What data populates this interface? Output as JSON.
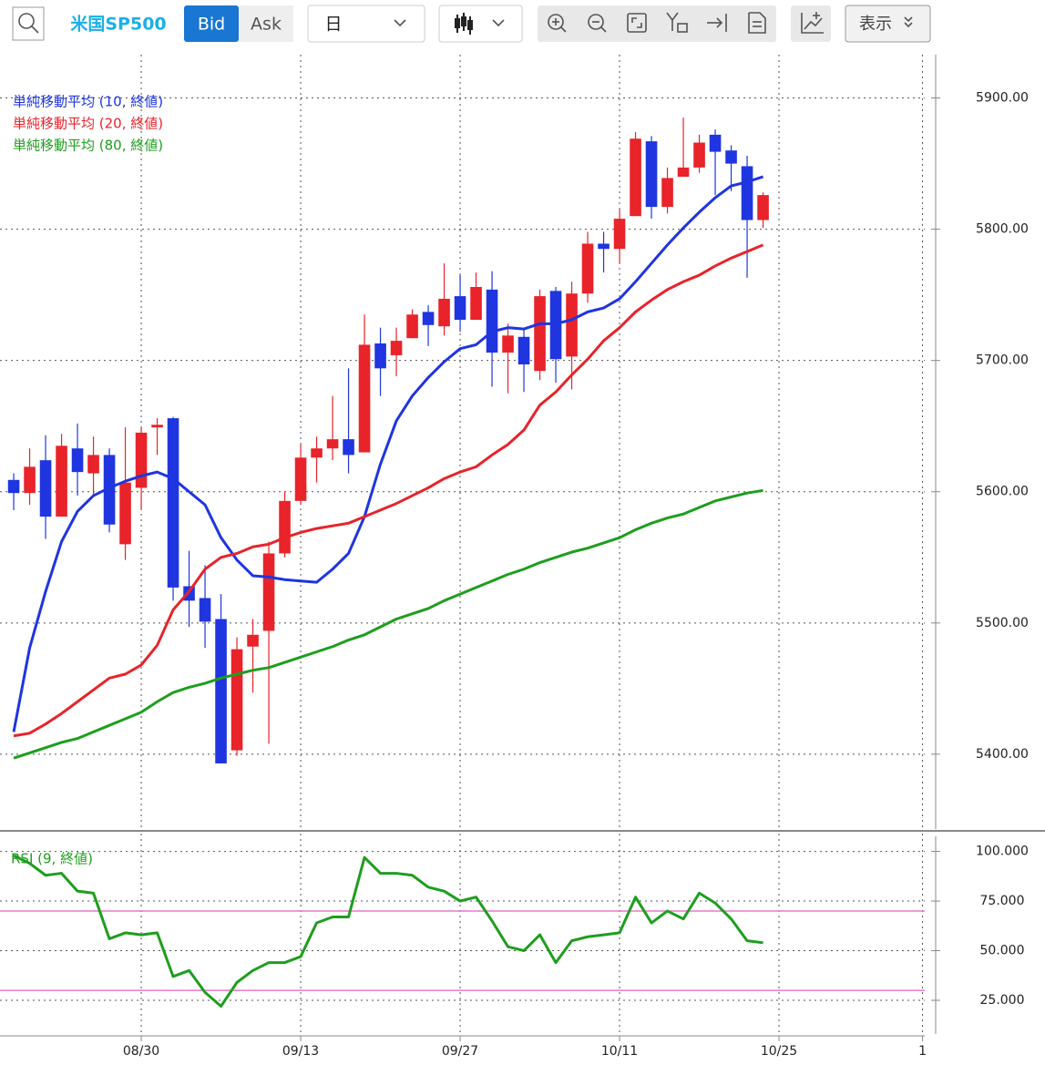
{
  "toolbar": {
    "symbol": "米国SP500",
    "bid": "Bid",
    "ask": "Ask",
    "period": "日",
    "display": "表示"
  },
  "chart_data": [
    {
      "type": "candlestick",
      "xlim": [
        -0.86,
        57.14
      ],
      "xticks": [
        {
          "value": 8,
          "label": "08/30"
        },
        {
          "value": 18,
          "label": "09/13"
        },
        {
          "value": 28,
          "label": "09/27"
        },
        {
          "value": 38,
          "label": "10/11"
        },
        {
          "value": 48,
          "label": "10/25"
        },
        {
          "value": 57,
          "label": "1"
        }
      ],
      "ylim": [
        5343,
        5933
      ],
      "yticks": [
        {
          "value": 5400,
          "label": "5400.00"
        },
        {
          "value": 5500,
          "label": "5500.00"
        },
        {
          "value": 5600,
          "label": "5600.00"
        },
        {
          "value": 5700,
          "label": "5700.00"
        },
        {
          "value": 5800,
          "label": "5800.00"
        },
        {
          "value": 5900,
          "label": "5900.00"
        }
      ],
      "grid": true,
      "candles": {
        "up_color": "#e8232a",
        "down_color": "#1f35e0",
        "open": [
          5609,
          5599,
          5624,
          5581,
          5633,
          5614,
          5628,
          5560,
          5603,
          5649,
          5656,
          5528,
          5519,
          5503,
          5403,
          5482,
          5494,
          5553,
          5593,
          5626,
          5633,
          5640,
          5630,
          5713,
          5704,
          5717,
          5737,
          5726,
          5749,
          5731,
          5754,
          5706,
          5718,
          5692,
          5753,
          5703,
          5751,
          5789,
          5785,
          5810,
          5867,
          5817,
          5840,
          5847,
          5872,
          5860,
          5848,
          5807
        ],
        "high": [
          5614,
          5633,
          5643,
          5644,
          5652,
          5642,
          5633,
          5649,
          5649,
          5656,
          5657,
          5555,
          5544,
          5522,
          5489,
          5503,
          5562,
          5600,
          5636,
          5642,
          5673,
          5694,
          5735,
          5725,
          5725,
          5739,
          5742,
          5774,
          5765,
          5767,
          5768,
          5728,
          5725,
          5754,
          5756,
          5760,
          5798,
          5798,
          5815,
          5874,
          5871,
          5847,
          5885,
          5872,
          5876,
          5864,
          5856,
          5828
        ],
        "low": [
          5586,
          5590,
          5564,
          5581,
          5597,
          5597,
          5569,
          5548,
          5586,
          5628,
          5517,
          5497,
          5481,
          5393,
          5399,
          5447,
          5408,
          5550,
          5590,
          5607,
          5624,
          5614,
          5630,
          5673,
          5688,
          5717,
          5711,
          5719,
          5722,
          5731,
          5680,
          5675,
          5676,
          5685,
          5683,
          5678,
          5744,
          5767,
          5774,
          5810,
          5808,
          5812,
          5840,
          5843,
          5826,
          5829,
          5763,
          5801
        ],
        "close": [
          5599,
          5619,
          5581,
          5635,
          5615,
          5628,
          5575,
          5607,
          5645,
          5651,
          5527,
          5517,
          5501,
          5393,
          5480,
          5491,
          5553,
          5593,
          5626,
          5633,
          5640,
          5628,
          5712,
          5694,
          5715,
          5735,
          5727,
          5747,
          5731,
          5756,
          5706,
          5719,
          5697,
          5749,
          5701,
          5751,
          5789,
          5785,
          5808,
          5869,
          5817,
          5839,
          5847,
          5866,
          5859,
          5850,
          5807,
          5826
        ]
      },
      "series": [
        {
          "name": "単純移動平均 (10, 終値)",
          "color": "#1f35e0",
          "values": [
            5417,
            5481,
            5524,
            5562,
            5585,
            5597,
            5603,
            5608,
            5612,
            5615,
            5610,
            5600,
            5590,
            5565,
            5548,
            5536,
            5535,
            5533,
            5532,
            5531,
            5541,
            5553,
            5581,
            5621,
            5654,
            5673,
            5687,
            5699,
            5709,
            5712,
            5722,
            5725,
            5724,
            5728,
            5728,
            5731,
            5737,
            5740,
            5747,
            5760,
            5774,
            5788,
            5801,
            5813,
            5824,
            5833,
            5836,
            5840
          ]
        },
        {
          "name": "単純移動平均 (20, 終値)",
          "color": "#e8232a",
          "values": [
            5414,
            5416,
            5423,
            5431,
            5440,
            5449,
            5458,
            5461,
            5468,
            5483,
            5510,
            5524,
            5541,
            5550,
            5553,
            5558,
            5560,
            5565,
            5569,
            5572,
            5574,
            5576,
            5581,
            5586,
            5591,
            5597,
            5603,
            5610,
            5615,
            5619,
            5628,
            5636,
            5647,
            5666,
            5676,
            5689,
            5701,
            5715,
            5725,
            5737,
            5746,
            5754,
            5760,
            5765,
            5772,
            5778,
            5783,
            5788
          ]
        },
        {
          "name": "単純移動平均 (80, 終値)",
          "color": "#1e9e1e",
          "values": [
            5397,
            5401,
            5405,
            5409,
            5412,
            5417,
            5422,
            5427,
            5432,
            5440,
            5447,
            5451,
            5454,
            5458,
            5461,
            5464,
            5466,
            5470,
            5474,
            5478,
            5482,
            5487,
            5491,
            5497,
            5503,
            5507,
            5511,
            5517,
            5522,
            5527,
            5532,
            5537,
            5541,
            5546,
            5550,
            5554,
            5557,
            5561,
            5565,
            5571,
            5576,
            5580,
            5583,
            5588,
            5593,
            5596,
            5599,
            5601
          ]
        }
      ]
    },
    {
      "type": "line",
      "xlim": [
        -0.86,
        57.14
      ],
      "ylim": [
        8,
        109
      ],
      "yticks": [
        {
          "value": 25,
          "label": "25.000"
        },
        {
          "value": 50,
          "label": "50.000"
        },
        {
          "value": 75,
          "label": "75.000"
        },
        {
          "value": 100,
          "label": "100.000"
        }
      ],
      "grid": true,
      "levels": [
        70,
        30
      ],
      "level_color": "#e87ac8",
      "series": [
        {
          "name": "RSI (9, 終値)",
          "color": "#1e9e1e",
          "values": [
            98,
            94,
            88,
            89,
            80,
            79,
            56,
            59,
            58,
            59,
            37,
            40,
            29,
            22,
            34,
            40,
            44,
            44,
            47,
            64,
            67,
            67,
            97,
            89,
            89,
            88,
            82,
            80,
            75,
            77,
            65,
            52,
            50,
            58,
            44,
            55,
            57,
            58,
            59,
            77,
            64,
            70,
            66,
            79,
            74,
            66,
            55,
            54
          ]
        }
      ]
    }
  ]
}
